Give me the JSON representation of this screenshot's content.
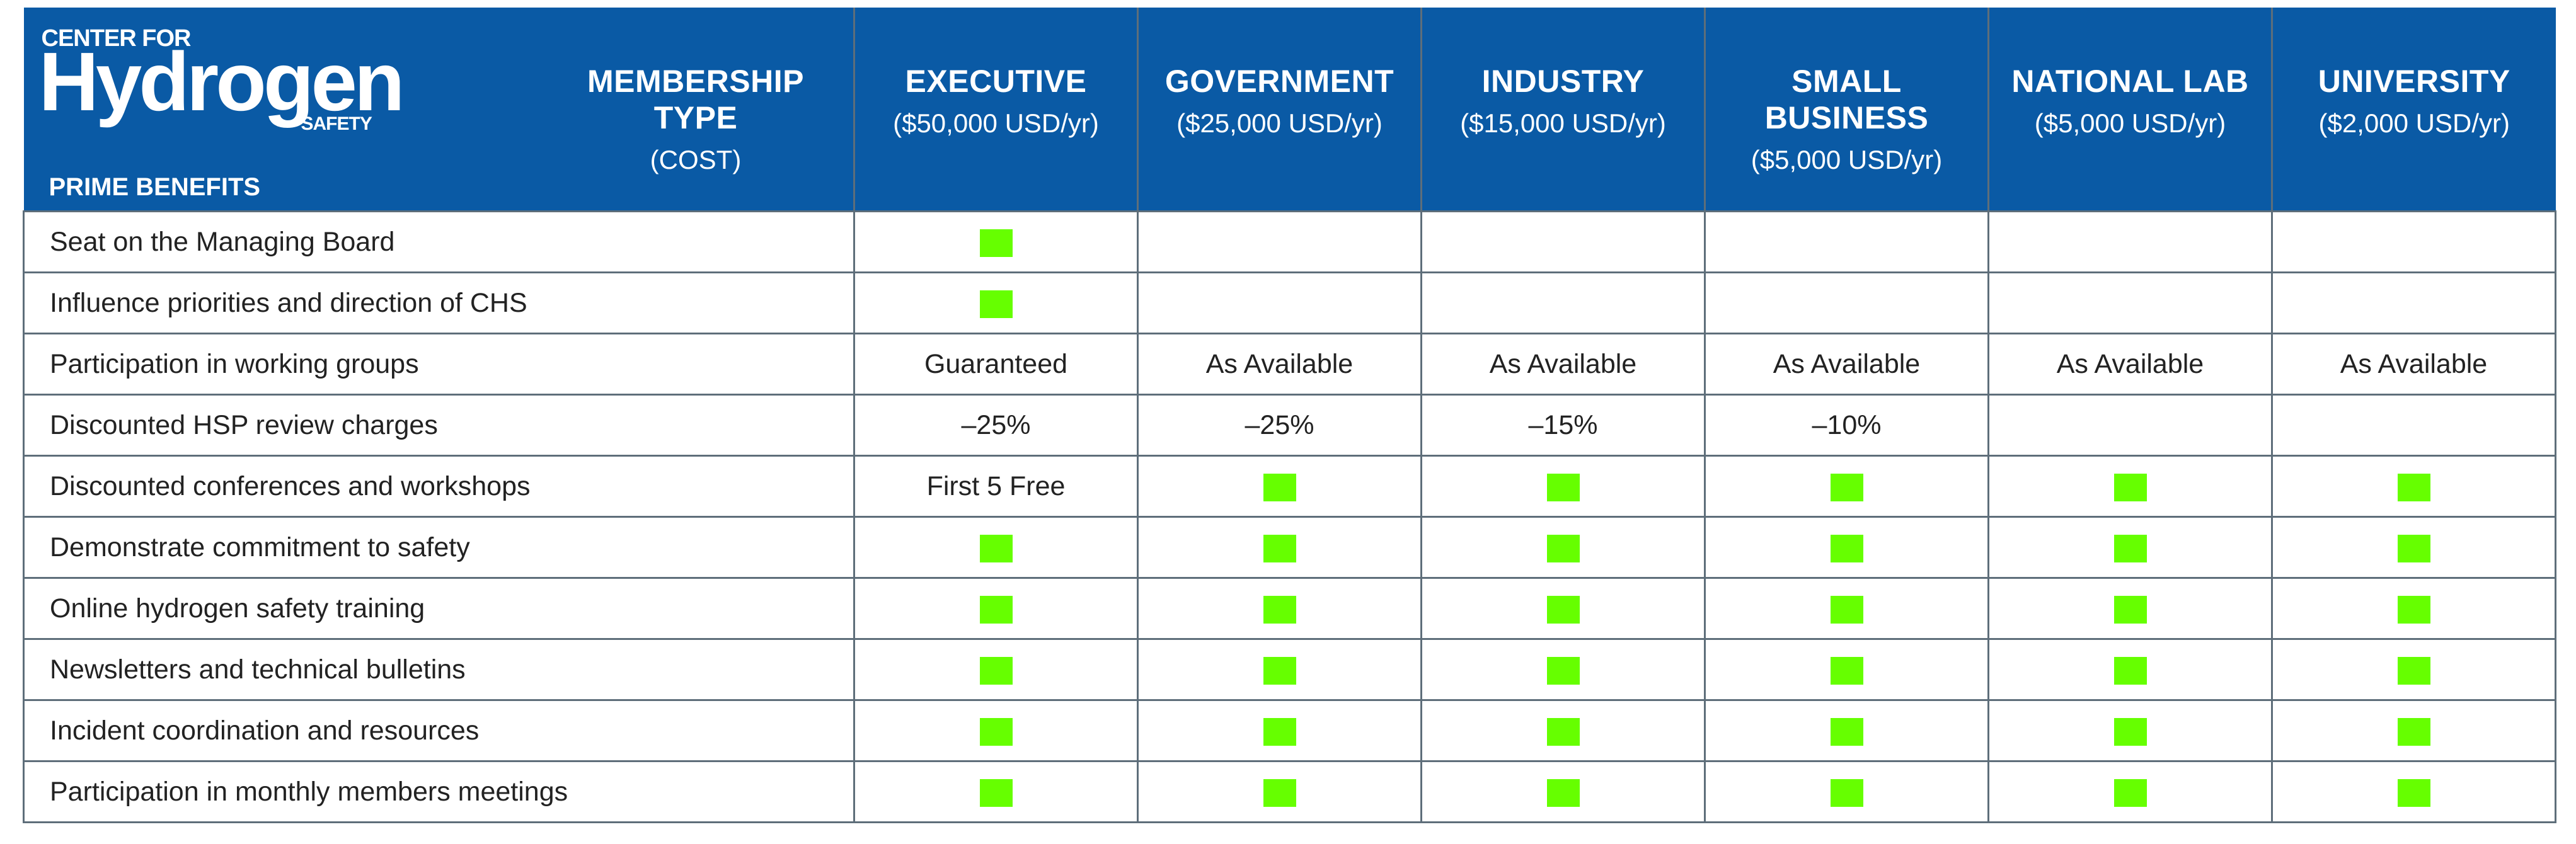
{
  "logo": {
    "line1": "CENTER FOR",
    "main": "Hydrogen",
    "line3": "SAFETY"
  },
  "header": {
    "membership_type_label": "MEMBERSHIP TYPE",
    "cost_label": "(COST)",
    "prime_benefits_label": "PRIME BENEFITS",
    "columns": [
      {
        "name": "EXECUTIVE",
        "cost": "($50,000 USD/yr)"
      },
      {
        "name": "GOVERNMENT",
        "cost": "($25,000 USD/yr)"
      },
      {
        "name": "INDUSTRY",
        "cost": "($15,000 USD/yr)"
      },
      {
        "name": "SMALL BUSINESS",
        "cost": "($5,000 USD/yr)"
      },
      {
        "name": "NATIONAL LAB",
        "cost": "($5,000 USD/yr)"
      },
      {
        "name": "UNIVERSITY",
        "cost": "($2,000 USD/yr)"
      }
    ]
  },
  "rows": [
    {
      "benefit": "Seat on the Managing Board",
      "cells": [
        "check",
        "",
        "",
        "",
        "",
        ""
      ]
    },
    {
      "benefit": "Influence priorities and direction of CHS",
      "cells": [
        "check",
        "",
        "",
        "",
        "",
        ""
      ]
    },
    {
      "benefit": "Participation in working groups",
      "cells": [
        "Guaranteed",
        "As Available",
        "As Available",
        "As Available",
        "As Available",
        "As Available"
      ]
    },
    {
      "benefit": "Discounted HSP review charges",
      "cells": [
        "–25%",
        "–25%",
        "–15%",
        "–10%",
        "",
        ""
      ]
    },
    {
      "benefit": "Discounted conferences and workshops",
      "cells": [
        "First 5 Free",
        "check",
        "check",
        "check",
        "check",
        "check"
      ]
    },
    {
      "benefit": "Demonstrate commitment to safety",
      "cells": [
        "check",
        "check",
        "check",
        "check",
        "check",
        "check"
      ]
    },
    {
      "benefit": "Online hydrogen safety training",
      "cells": [
        "check",
        "check",
        "check",
        "check",
        "check",
        "check"
      ]
    },
    {
      "benefit": "Newsletters and technical bulletins",
      "cells": [
        "check",
        "check",
        "check",
        "check",
        "check",
        "check"
      ]
    },
    {
      "benefit": "Incident coordination and resources",
      "cells": [
        "check",
        "check",
        "check",
        "check",
        "check",
        "check"
      ]
    },
    {
      "benefit": "Participation in monthly members meetings",
      "cells": [
        "check",
        "check",
        "check",
        "check",
        "check",
        "check"
      ]
    }
  ],
  "colors": {
    "header_bg": "#0a5aa5",
    "check_mark": "#66ff00",
    "grid_line": "#5e6e7a"
  }
}
